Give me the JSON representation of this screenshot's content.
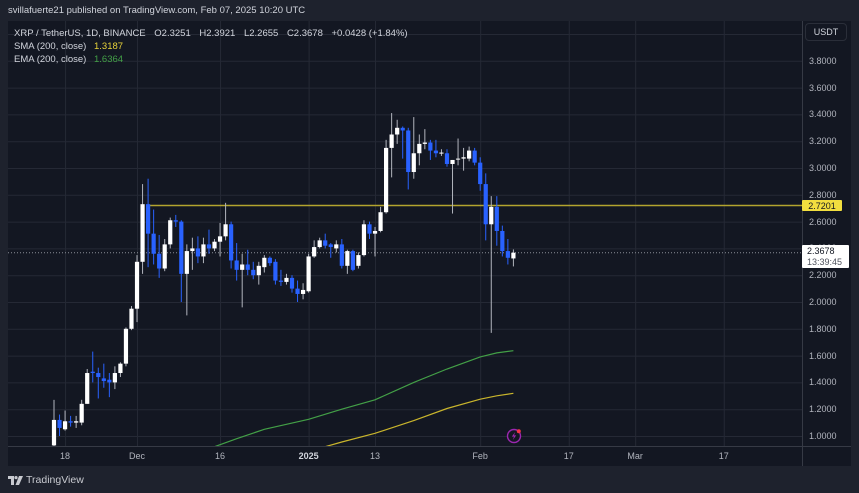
{
  "header": {
    "publisher_line": "svillafuerte21 published on TradingView.com, Feb 07, 2025 10:20 UTC"
  },
  "legend": {
    "symbol": "XRP / TetherUS, 1D, BINANCE",
    "open": "O2.3251",
    "high": "H2.3921",
    "low": "L2.2655",
    "close": "C2.3678",
    "change": "+0.0428 (+1.84%)",
    "sma_label": "SMA (200, close)",
    "sma_value": "1.3187",
    "ema_label": "EMA (200, close)",
    "ema_value": "1.6364"
  },
  "price_axis": {
    "currency": "USDT",
    "ticks": [
      {
        "label": "3.8000",
        "value": 3.8
      },
      {
        "label": "3.6000",
        "value": 3.6
      },
      {
        "label": "3.4000",
        "value": 3.4
      },
      {
        "label": "3.2000",
        "value": 3.2
      },
      {
        "label": "3.0000",
        "value": 3.0
      },
      {
        "label": "2.8000",
        "value": 2.8
      },
      {
        "label": "2.6000",
        "value": 2.6
      },
      {
        "label": "2.4000",
        "value": 2.4
      },
      {
        "label": "2.2000",
        "value": 2.2
      },
      {
        "label": "2.0000",
        "value": 2.0
      },
      {
        "label": "1.8000",
        "value": 1.8
      },
      {
        "label": "1.6000",
        "value": 1.6
      },
      {
        "label": "1.4000",
        "value": 1.4
      },
      {
        "label": "1.2000",
        "value": 1.2
      },
      {
        "label": "1.0000",
        "value": 1.0
      }
    ]
  },
  "horizontal_line": {
    "label": "2.7201",
    "value": 2.7201,
    "start_index": 17.3
  },
  "current_price": {
    "label": "2.3678",
    "value": 2.3678,
    "countdown": "13:39:45"
  },
  "time_axis": {
    "ticks": [
      {
        "label": "18",
        "index": 2,
        "bold": false
      },
      {
        "label": "Dec",
        "index": 15,
        "bold": false
      },
      {
        "label": "16",
        "index": 30,
        "bold": false
      },
      {
        "label": "2025",
        "index": 46,
        "bold": true
      },
      {
        "label": "13",
        "index": 58,
        "bold": false
      },
      {
        "label": "Feb",
        "index": 77,
        "bold": false
      },
      {
        "label": "17",
        "index": 93,
        "bold": false
      },
      {
        "label": "Mar",
        "index": 105,
        "bold": false
      },
      {
        "label": "17",
        "index": 121,
        "bold": false
      }
    ]
  },
  "footer": {
    "brand": "TradingView"
  },
  "colors": {
    "up_body": "#ffffff",
    "up_wick": "#b2b5be",
    "down": "#2962ff",
    "sma": "#c9b52c",
    "ema": "#43a047",
    "hline": "#b3a42e",
    "grid": "#252935",
    "events_icon": "#9c27b0",
    "events_dot": "#f23645"
  },
  "chart_data": {
    "type": "candlestick",
    "title": "XRP / TetherUS, 1D, BINANCE",
    "xlabel": "",
    "ylabel": "USDT",
    "ylim": [
      0.925,
      4.05
    ],
    "grid": true,
    "grid_levels": [
      1.0,
      1.2,
      1.4,
      1.6,
      1.8,
      2.0,
      2.2,
      2.4,
      2.6,
      2.8,
      3.0,
      3.2,
      3.4,
      3.6,
      3.8,
      4.0
    ],
    "legend_position": "top-left",
    "candles": [
      {
        "d": "Nov 16",
        "o": 0.93,
        "h": 1.27,
        "l": 0.92,
        "c": 1.12
      },
      {
        "d": "Nov 17",
        "o": 1.12,
        "h": 1.16,
        "l": 1.0,
        "c": 1.06
      },
      {
        "d": "Nov 18",
        "o": 1.05,
        "h": 1.19,
        "l": 1.04,
        "c": 1.11
      },
      {
        "d": "Nov 19",
        "o": 1.11,
        "h": 1.15,
        "l": 1.07,
        "c": 1.1
      },
      {
        "d": "Nov 20",
        "o": 1.1,
        "h": 1.15,
        "l": 1.06,
        "c": 1.11
      },
      {
        "d": "Nov 21",
        "o": 1.1,
        "h": 1.27,
        "l": 1.08,
        "c": 1.24
      },
      {
        "d": "Nov 22",
        "o": 1.24,
        "h": 1.5,
        "l": 1.24,
        "c": 1.47
      },
      {
        "d": "Nov 23",
        "o": 1.48,
        "h": 1.63,
        "l": 1.4,
        "c": 1.47
      },
      {
        "d": "Nov 24",
        "o": 1.47,
        "h": 1.51,
        "l": 1.28,
        "c": 1.44
      },
      {
        "d": "Nov 25",
        "o": 1.43,
        "h": 1.54,
        "l": 1.36,
        "c": 1.41
      },
      {
        "d": "Nov 26",
        "o": 1.42,
        "h": 1.47,
        "l": 1.29,
        "c": 1.4
      },
      {
        "d": "Nov 27",
        "o": 1.4,
        "h": 1.52,
        "l": 1.35,
        "c": 1.47
      },
      {
        "d": "Nov 28",
        "o": 1.47,
        "h": 1.55,
        "l": 1.44,
        "c": 1.54
      },
      {
        "d": "Nov 29",
        "o": 1.54,
        "h": 1.81,
        "l": 1.52,
        "c": 1.8
      },
      {
        "d": "Nov 30",
        "o": 1.8,
        "h": 1.97,
        "l": 1.79,
        "c": 1.95
      },
      {
        "d": "Dec 1",
        "o": 1.95,
        "h": 2.35,
        "l": 1.85,
        "c": 2.3
      },
      {
        "d": "Dec 2",
        "o": 2.3,
        "h": 2.88,
        "l": 2.21,
        "c": 2.73
      },
      {
        "d": "Dec 3",
        "o": 2.73,
        "h": 2.92,
        "l": 2.26,
        "c": 2.51
      },
      {
        "d": "Dec 4",
        "o": 2.51,
        "h": 2.69,
        "l": 2.28,
        "c": 2.36
      },
      {
        "d": "Dec 5",
        "o": 2.36,
        "h": 2.5,
        "l": 2.18,
        "c": 2.25
      },
      {
        "d": "Dec 6",
        "o": 2.25,
        "h": 2.47,
        "l": 2.23,
        "c": 2.43
      },
      {
        "d": "Dec 7",
        "o": 2.43,
        "h": 2.63,
        "l": 2.4,
        "c": 2.61
      },
      {
        "d": "Dec 8",
        "o": 2.61,
        "h": 2.65,
        "l": 2.56,
        "c": 2.6
      },
      {
        "d": "Dec 9",
        "o": 2.6,
        "h": 2.61,
        "l": 2.0,
        "c": 2.21
      },
      {
        "d": "Dec 10",
        "o": 2.21,
        "h": 2.43,
        "l": 1.9,
        "c": 2.38
      },
      {
        "d": "Dec 11",
        "o": 2.38,
        "h": 2.48,
        "l": 2.24,
        "c": 2.4
      },
      {
        "d": "Dec 12",
        "o": 2.4,
        "h": 2.49,
        "l": 2.29,
        "c": 2.34
      },
      {
        "d": "Dec 13",
        "o": 2.34,
        "h": 2.48,
        "l": 2.29,
        "c": 2.43
      },
      {
        "d": "Dec 14",
        "o": 2.43,
        "h": 2.54,
        "l": 2.36,
        "c": 2.4
      },
      {
        "d": "Dec 15",
        "o": 2.4,
        "h": 2.47,
        "l": 2.38,
        "c": 2.45
      },
      {
        "d": "Dec 16",
        "o": 2.45,
        "h": 2.59,
        "l": 2.34,
        "c": 2.49
      },
      {
        "d": "Dec 17",
        "o": 2.49,
        "h": 2.74,
        "l": 2.46,
        "c": 2.58
      },
      {
        "d": "Dec 18",
        "o": 2.58,
        "h": 2.6,
        "l": 2.25,
        "c": 2.31
      },
      {
        "d": "Dec 19",
        "o": 2.31,
        "h": 2.44,
        "l": 2.16,
        "c": 2.24
      },
      {
        "d": "Dec 20",
        "o": 2.24,
        "h": 2.36,
        "l": 1.96,
        "c": 2.28
      },
      {
        "d": "Dec 21",
        "o": 2.28,
        "h": 2.39,
        "l": 2.2,
        "c": 2.24
      },
      {
        "d": "Dec 22",
        "o": 2.24,
        "h": 2.3,
        "l": 2.17,
        "c": 2.2
      },
      {
        "d": "Dec 23",
        "o": 2.2,
        "h": 2.3,
        "l": 2.13,
        "c": 2.27
      },
      {
        "d": "Dec 24",
        "o": 2.26,
        "h": 2.35,
        "l": 2.22,
        "c": 2.33
      },
      {
        "d": "Dec 25",
        "o": 2.33,
        "h": 2.34,
        "l": 2.27,
        "c": 2.29
      },
      {
        "d": "Dec 26",
        "o": 2.3,
        "h": 2.32,
        "l": 2.13,
        "c": 2.16
      },
      {
        "d": "Dec 27",
        "o": 2.16,
        "h": 2.24,
        "l": 2.12,
        "c": 2.15
      },
      {
        "d": "Dec 28",
        "o": 2.15,
        "h": 2.21,
        "l": 2.13,
        "c": 2.18
      },
      {
        "d": "Dec 29",
        "o": 2.18,
        "h": 2.2,
        "l": 2.07,
        "c": 2.1
      },
      {
        "d": "Dec 30",
        "o": 2.1,
        "h": 2.16,
        "l": 2.0,
        "c": 2.06
      },
      {
        "d": "Dec 31",
        "o": 2.06,
        "h": 2.14,
        "l": 2.02,
        "c": 2.09
      },
      {
        "d": "Jan 1",
        "o": 2.08,
        "h": 2.36,
        "l": 2.07,
        "c": 2.34
      },
      {
        "d": "Jan 2",
        "o": 2.34,
        "h": 2.46,
        "l": 2.33,
        "c": 2.41
      },
      {
        "d": "Jan 3",
        "o": 2.41,
        "h": 2.48,
        "l": 2.4,
        "c": 2.46
      },
      {
        "d": "Jan 4",
        "o": 2.46,
        "h": 2.51,
        "l": 2.4,
        "c": 2.42
      },
      {
        "d": "Jan 5",
        "o": 2.43,
        "h": 2.44,
        "l": 2.33,
        "c": 2.41
      },
      {
        "d": "Jan 6",
        "o": 2.4,
        "h": 2.46,
        "l": 2.37,
        "c": 2.43
      },
      {
        "d": "Jan 7",
        "o": 2.43,
        "h": 2.47,
        "l": 2.25,
        "c": 2.27
      },
      {
        "d": "Jan 8",
        "o": 2.27,
        "h": 2.39,
        "l": 2.21,
        "c": 2.38
      },
      {
        "d": "Jan 9",
        "o": 2.38,
        "h": 2.39,
        "l": 2.23,
        "c": 2.24
      },
      {
        "d": "Jan 10",
        "o": 2.27,
        "h": 2.37,
        "l": 2.25,
        "c": 2.35
      },
      {
        "d": "Jan 11",
        "o": 2.35,
        "h": 2.61,
        "l": 2.34,
        "c": 2.58
      },
      {
        "d": "Jan 12",
        "o": 2.58,
        "h": 2.6,
        "l": 2.47,
        "c": 2.51
      },
      {
        "d": "Jan 13",
        "o": 2.51,
        "h": 2.56,
        "l": 2.34,
        "c": 2.53
      },
      {
        "d": "Jan 14",
        "o": 2.53,
        "h": 2.71,
        "l": 2.52,
        "c": 2.67
      },
      {
        "d": "Jan 15",
        "o": 2.67,
        "h": 3.21,
        "l": 2.66,
        "c": 3.15
      },
      {
        "d": "Jan 16",
        "o": 3.15,
        "h": 3.41,
        "l": 2.93,
        "c": 3.25
      },
      {
        "d": "Jan 17",
        "o": 3.25,
        "h": 3.36,
        "l": 3.18,
        "c": 3.3
      },
      {
        "d": "Jan 18",
        "o": 3.3,
        "h": 3.31,
        "l": 3.07,
        "c": 3.28
      },
      {
        "d": "Jan 19",
        "o": 3.28,
        "h": 3.3,
        "l": 2.84,
        "c": 2.97
      },
      {
        "d": "Jan 20",
        "o": 2.97,
        "h": 3.38,
        "l": 2.92,
        "c": 3.11
      },
      {
        "d": "Jan 21",
        "o": 3.11,
        "h": 3.25,
        "l": 3.02,
        "c": 3.18
      },
      {
        "d": "Jan 22",
        "o": 3.18,
        "h": 3.29,
        "l": 3.14,
        "c": 3.19
      },
      {
        "d": "Jan 23",
        "o": 3.19,
        "h": 3.21,
        "l": 3.06,
        "c": 3.13
      },
      {
        "d": "Jan 24",
        "o": 3.13,
        "h": 3.21,
        "l": 3.08,
        "c": 3.11
      },
      {
        "d": "Jan 25",
        "o": 3.11,
        "h": 3.14,
        "l": 3.09,
        "c": 3.115
      },
      {
        "d": "Jan 26",
        "o": 3.11,
        "h": 3.14,
        "l": 3.01,
        "c": 3.03
      },
      {
        "d": "Jan 27",
        "o": 3.03,
        "h": 3.06,
        "l": 2.66,
        "c": 3.06
      },
      {
        "d": "Jan 28",
        "o": 3.065,
        "h": 3.22,
        "l": 3.02,
        "c": 3.07
      },
      {
        "d": "Jan 29",
        "o": 3.07,
        "h": 3.15,
        "l": 2.98,
        "c": 3.08
      },
      {
        "d": "Jan 30",
        "o": 3.07,
        "h": 3.16,
        "l": 3.05,
        "c": 3.13
      },
      {
        "d": "Jan 31",
        "o": 3.13,
        "h": 3.15,
        "l": 3.02,
        "c": 3.04
      },
      {
        "d": "Feb 1",
        "o": 3.04,
        "h": 3.08,
        "l": 2.83,
        "c": 2.88
      },
      {
        "d": "Feb 2",
        "o": 2.88,
        "h": 2.96,
        "l": 2.46,
        "c": 2.58
      },
      {
        "d": "Feb 3",
        "o": 2.58,
        "h": 2.79,
        "l": 1.77,
        "c": 2.71
      },
      {
        "d": "Feb 4",
        "o": 2.71,
        "h": 2.79,
        "l": 2.42,
        "c": 2.53
      },
      {
        "d": "Feb 5",
        "o": 2.53,
        "h": 2.57,
        "l": 2.34,
        "c": 2.38
      },
      {
        "d": "Feb 6",
        "o": 2.38,
        "h": 2.47,
        "l": 2.28,
        "c": 2.33
      },
      {
        "d": "Feb 7",
        "o": 2.3251,
        "h": 2.3921,
        "l": 2.2655,
        "c": 2.3678
      }
    ],
    "series": [
      {
        "name": "SMA (200, close)",
        "last": 1.3187,
        "points": [
          [
            49,
            0.92
          ],
          [
            52,
            0.955
          ],
          [
            58,
            1.02
          ],
          [
            65,
            1.115
          ],
          [
            71,
            1.205
          ],
          [
            77,
            1.275
          ],
          [
            80,
            1.3
          ],
          [
            83,
            1.3187
          ]
        ]
      },
      {
        "name": "EMA (200, close)",
        "last": 1.6364,
        "points": [
          [
            29,
            0.92
          ],
          [
            33,
            0.98
          ],
          [
            38,
            1.05
          ],
          [
            46,
            1.125
          ],
          [
            52,
            1.2
          ],
          [
            58,
            1.27
          ],
          [
            65,
            1.4
          ],
          [
            71,
            1.5
          ],
          [
            77,
            1.59
          ],
          [
            80,
            1.62
          ],
          [
            83,
            1.6364
          ]
        ]
      }
    ],
    "annotations": [
      {
        "type": "horizontal_line",
        "value": 2.7201
      },
      {
        "type": "current_price",
        "value": 2.3678
      },
      {
        "type": "events_marker",
        "index": 83
      }
    ]
  }
}
